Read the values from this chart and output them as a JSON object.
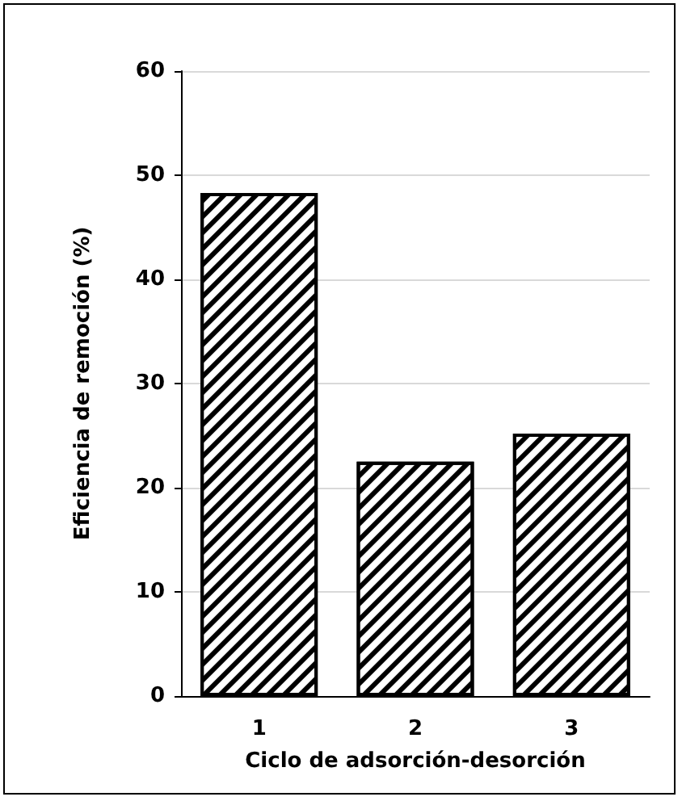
{
  "chart_data": {
    "type": "bar",
    "xlabel": "Ciclo de adsorción-desorción",
    "ylabel": "Eficiencia de remoción (%)",
    "categories": [
      "1",
      "2",
      "3"
    ],
    "values": [
      48.3,
      22.5,
      25.2
    ],
    "color": "#000000",
    "ylim": [
      0,
      60
    ],
    "yticks": [
      0,
      10,
      20,
      30,
      40,
      50,
      60
    ],
    "grid": "y"
  }
}
